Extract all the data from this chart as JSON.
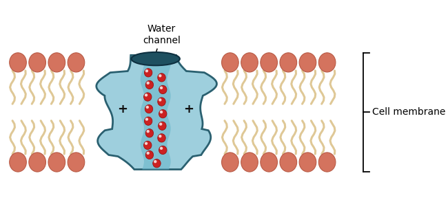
{
  "bg_color": "#ffffff",
  "head_color": "#d4735e",
  "head_edge_color": "#b85a45",
  "tail_color": "#dfc896",
  "tail_edge_color": "#c8a860",
  "channel_color": "#9ecfdd",
  "channel_edge_color": "#2a6070",
  "channel_inner_color": "#6db8cc",
  "water_color": "#cc2222",
  "water_highlight": "#ffffff",
  "title_text": "Water\nchannel",
  "label_text": "Cell membrane",
  "figsize": [
    6.5,
    3.26
  ],
  "dpi": 100
}
